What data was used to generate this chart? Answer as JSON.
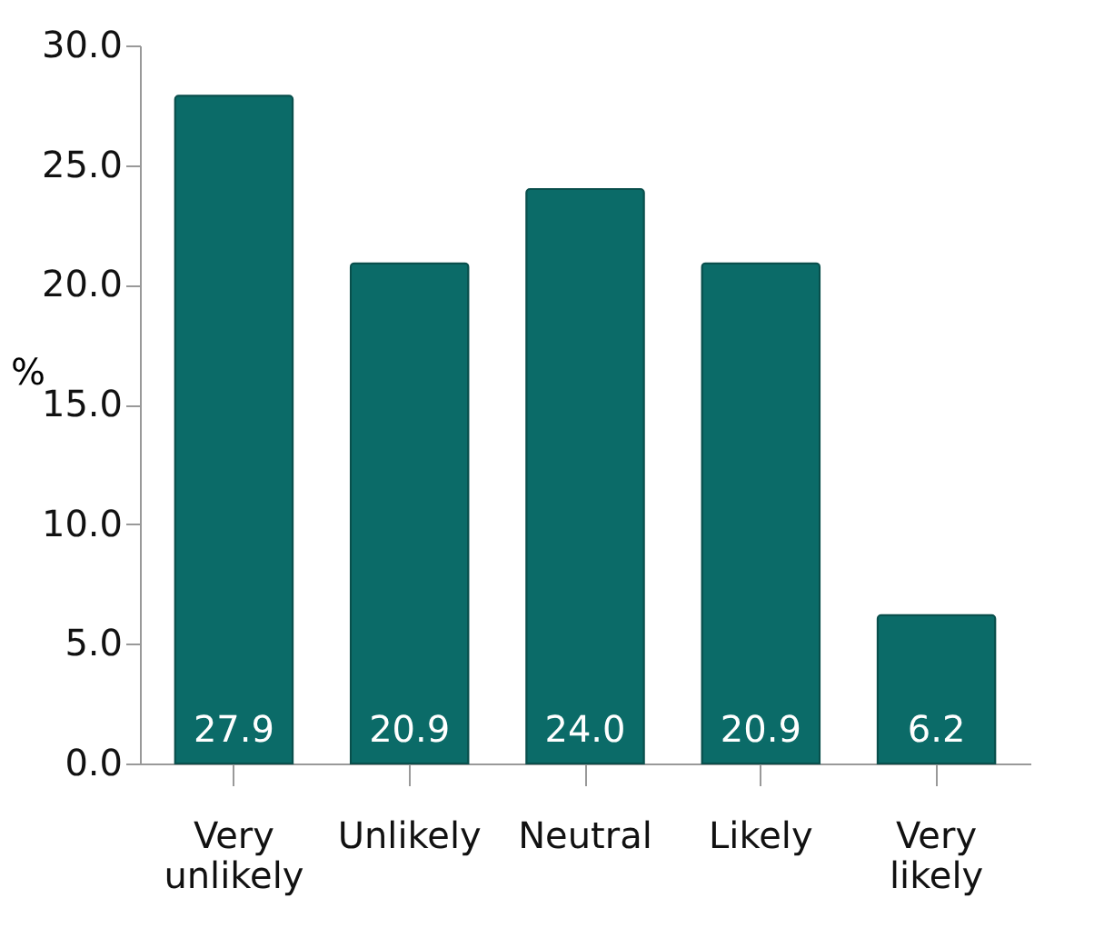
{
  "chart_data": {
    "type": "bar",
    "ylabel": "%",
    "categories": [
      "Very unlikely",
      "Unlikely",
      "Neutral",
      "Likely",
      "Very likely"
    ],
    "values": [
      27.9,
      20.9,
      24.0,
      20.9,
      6.2
    ],
    "color": "#0b6b68",
    "ylim": [
      0,
      30
    ],
    "yticks": [
      {
        "value": 0,
        "label": "0.0"
      },
      {
        "value": 5,
        "label": "5.0"
      },
      {
        "value": 10,
        "label": "10.0"
      },
      {
        "value": 15,
        "label": "15.0"
      },
      {
        "value": 20,
        "label": "20.0"
      },
      {
        "value": 25,
        "label": "25.0"
      },
      {
        "value": 30,
        "label": "30.0"
      }
    ],
    "value_labels": [
      "27.9",
      "20.9",
      "24.0",
      "20.9",
      "6.2"
    ],
    "grid": false
  }
}
